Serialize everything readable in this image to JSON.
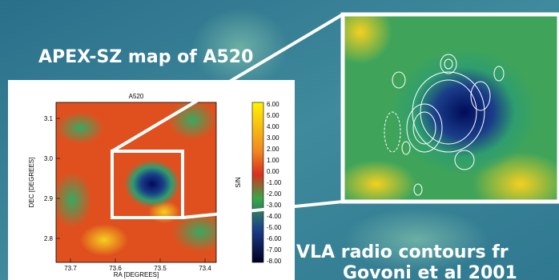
{
  "slide": {
    "title": "APEX-SZ map of A520",
    "caption_lines": [
      "VLA radio contours fr",
      "Govoni et al 2001"
    ],
    "plot": {
      "title": "A520",
      "y_label": "DEC [DEGREES]",
      "x_label": "RA [DEGREES]",
      "y_tick_labels": [
        "3.1",
        "3.0",
        "2.9",
        "2.8"
      ],
      "x_tick_labels": [
        "73.7",
        "73.6",
        "73.5",
        "73.4"
      ],
      "colorbar_label": "S/N",
      "colorbar_tick_labels": [
        "6.00",
        "5.00",
        "4.00",
        "3.00",
        "2.00",
        "1.00",
        "0.00",
        "-1.00",
        "-2.00",
        "-3.00",
        "-4.00",
        "-5.00",
        "-6.00",
        "-7.00",
        "-8.00"
      ]
    }
  }
}
